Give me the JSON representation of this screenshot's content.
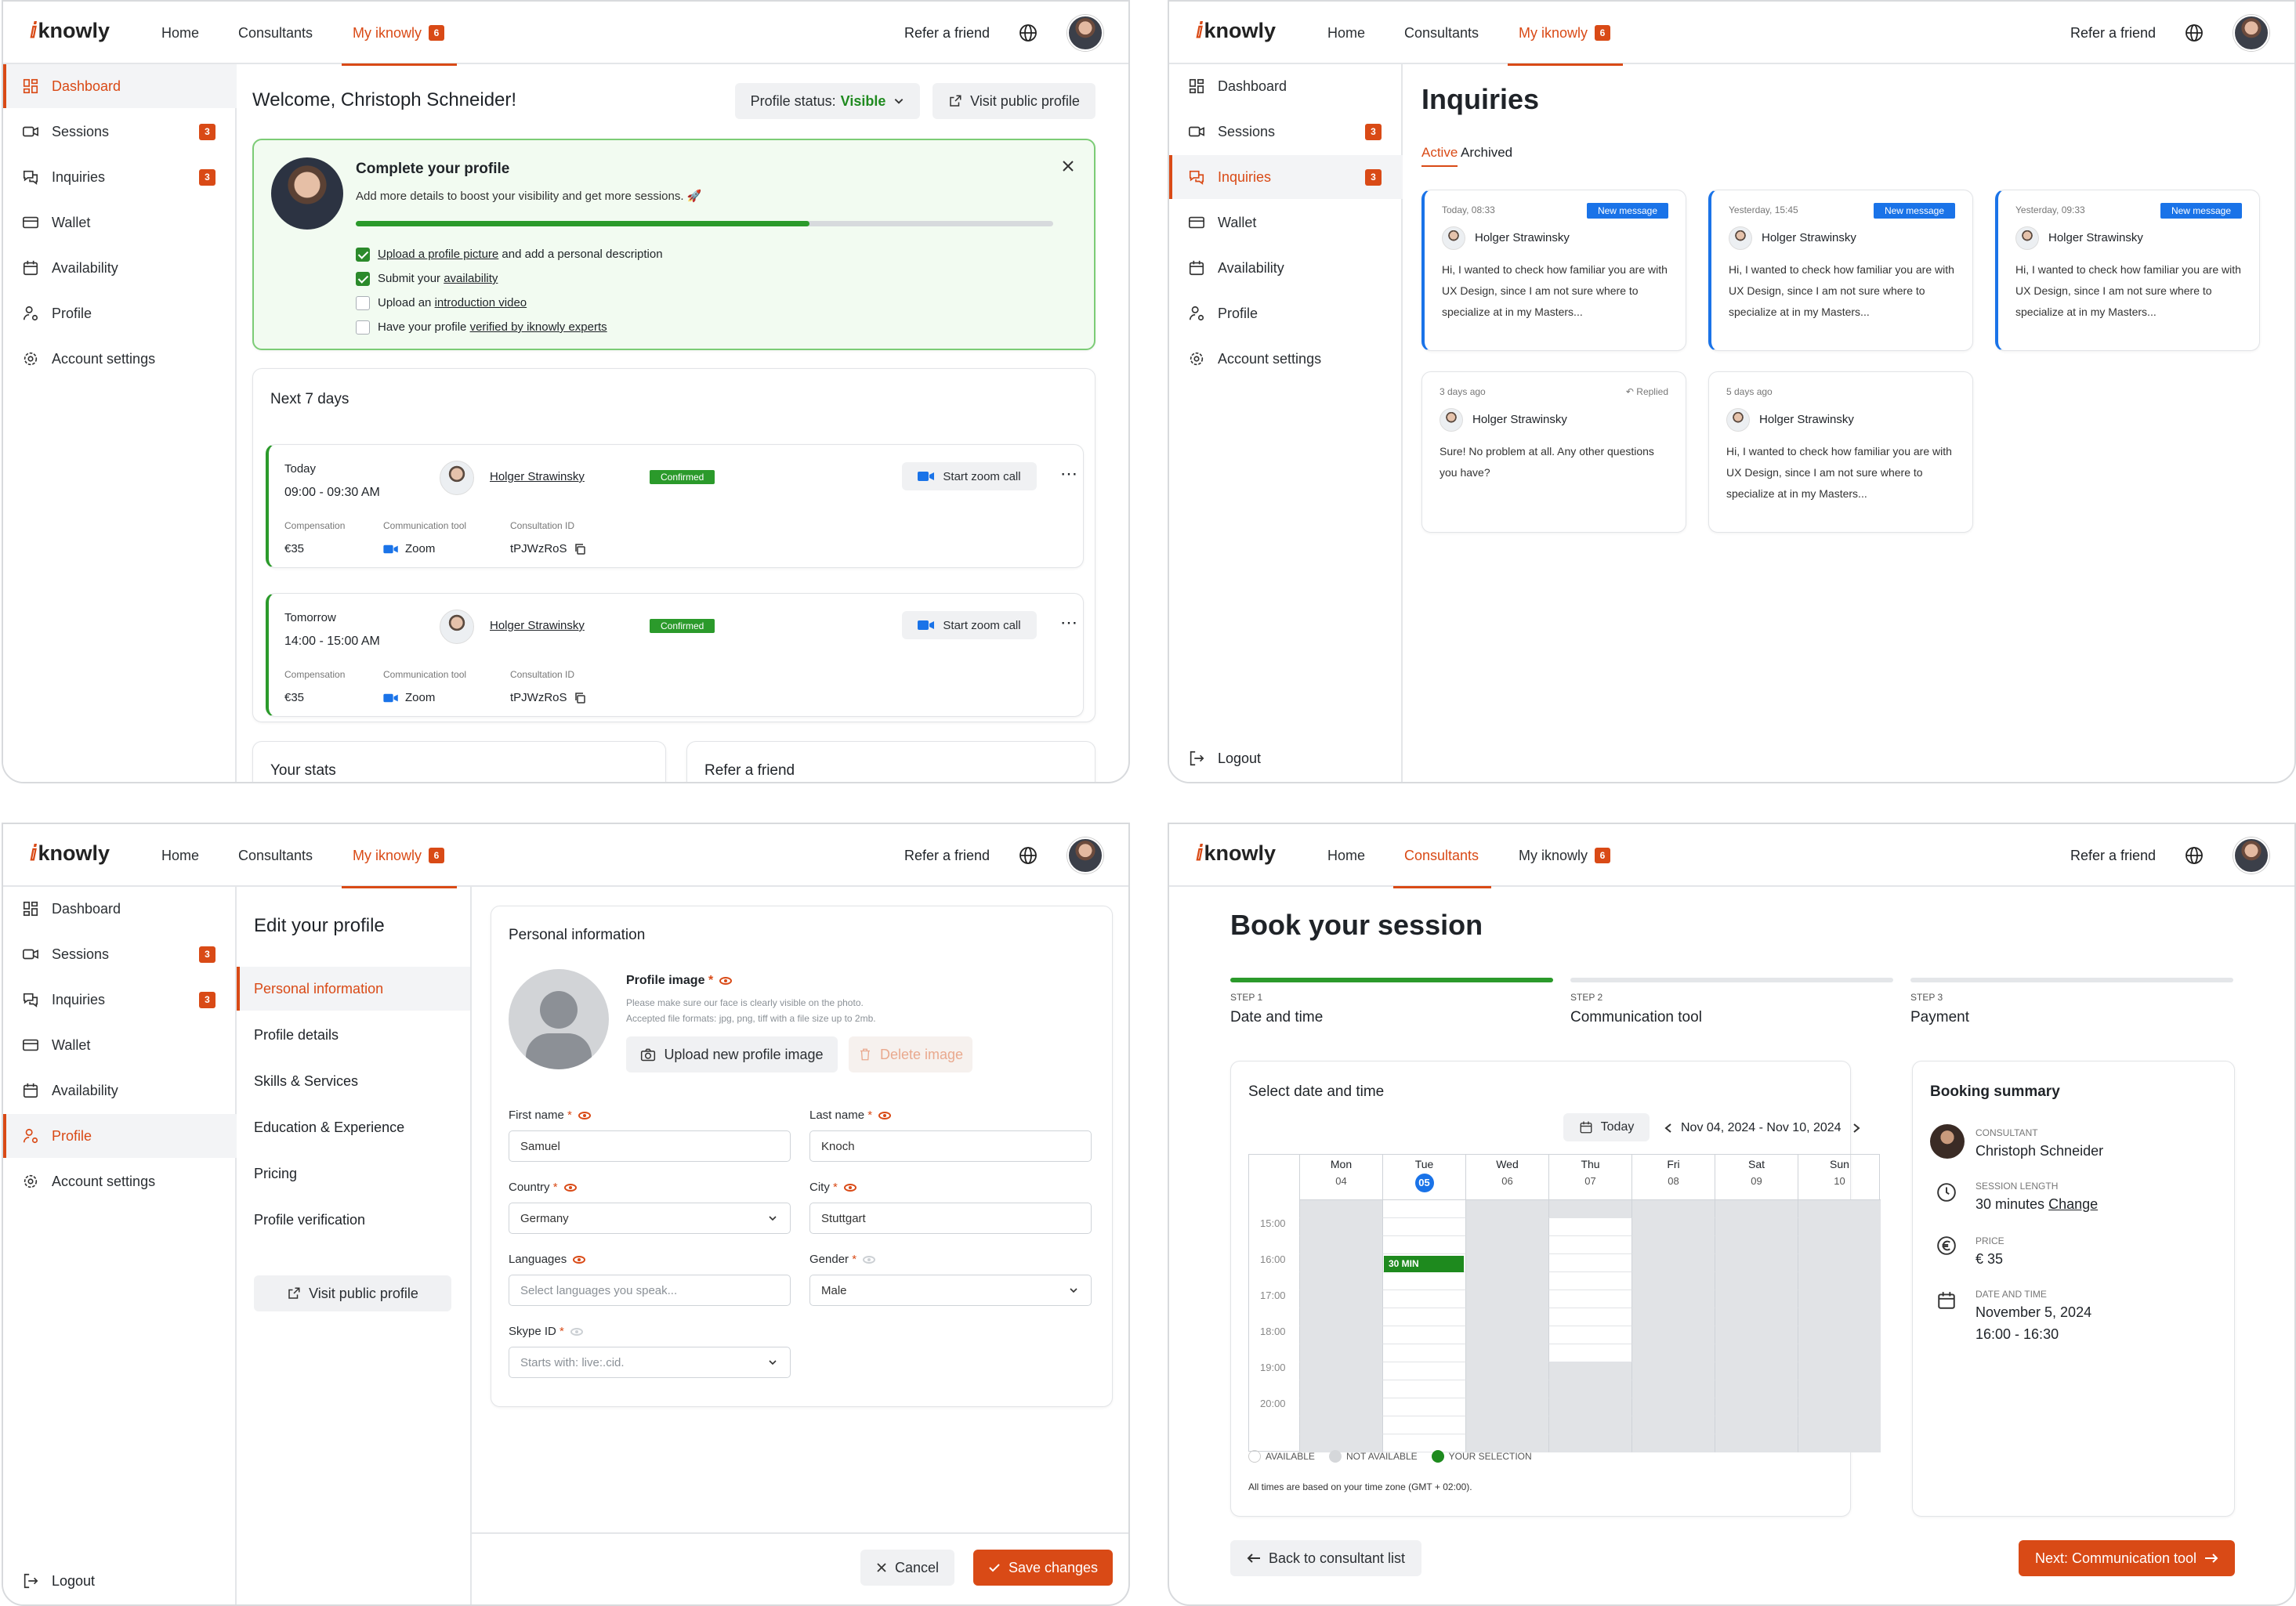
{
  "nav": {
    "logo": "knowly",
    "home": "Home",
    "consultants": "Consultants",
    "my_iknowly": "My iknowly",
    "my_badge": "6",
    "refer": "Refer a friend"
  },
  "sidebar": {
    "dashboard": "Dashboard",
    "sessions": "Sessions",
    "sessions_badge": "3",
    "inquiries": "Inquiries",
    "inquiries_badge": "3",
    "wallet": "Wallet",
    "availability": "Availability",
    "profile": "Profile",
    "account_settings": "Account settings",
    "logout": "Logout"
  },
  "dashboard": {
    "welcome": "Welcome, Christoph Schneider!",
    "profile_status_label": "Profile status:",
    "profile_status_value": "Visible",
    "visit_public": "Visit public profile",
    "complete": {
      "title": "Complete your profile",
      "subtitle": "Add more details to boost your visibility and get more sessions. 🚀",
      "progress": 0.65,
      "items": [
        {
          "pre": "",
          "link": "Upload a profile picture",
          "post": " and add a personal description",
          "done": true
        },
        {
          "pre": "Submit your ",
          "link": "availability",
          "post": "",
          "done": true
        },
        {
          "pre": "Upload an ",
          "link": "introduction video",
          "post": "",
          "done": false
        },
        {
          "pre": "Have your profile ",
          "link": "verified by iknowly experts",
          "post": "",
          "done": false
        }
      ]
    },
    "next7": "Next 7 days",
    "sessions": [
      {
        "day": "Today",
        "time": "09:00 - 09:30 AM",
        "name": "Holger Strawinsky",
        "status": "Confirmed",
        "zoom": "Start zoom call",
        "comp_label": "Compensation",
        "comp": "€35",
        "tool_label": "Communication tool",
        "tool": "Zoom",
        "id_label": "Consultation ID",
        "id": "tPJWzRoS"
      },
      {
        "day": "Tomorrow",
        "time": "14:00 - 15:00 AM",
        "name": "Holger Strawinsky",
        "status": "Confirmed",
        "zoom": "Start zoom call",
        "comp_label": "Compensation",
        "comp": "€35",
        "tool_label": "Communication tool",
        "tool": "Zoom",
        "id_label": "Consultation ID",
        "id": "tPJWzRoS"
      }
    ],
    "stats": "Your stats",
    "refer_card": "Refer a friend"
  },
  "inquiries": {
    "title": "Inquiries",
    "tab_active": "Active",
    "tab_archived": "Archived",
    "cards": [
      {
        "date": "Today, 08:33",
        "badge": "New message",
        "name": "Holger Strawinsky",
        "text": "Hi, I wanted to check how familiar you are with UX Design, since  I am not sure where to specialize at in my Masters..."
      },
      {
        "date": "Yesterday, 15:45",
        "badge": "New message",
        "name": "Holger Strawinsky",
        "text": "Hi, I wanted to check how familiar you are with UX Design, since  I am not sure where to specialize at in my Masters..."
      },
      {
        "date": "Yesterday, 09:33",
        "badge": "New message",
        "name": "Holger Strawinsky",
        "text": "Hi, I wanted to check how familiar you are with UX Design, since  I am not sure where to specialize at in my Masters..."
      },
      {
        "date": "3 days ago",
        "badge": "Replied",
        "name": "Holger Strawinsky",
        "text": "Sure! No problem at all. Any other questions you have?"
      },
      {
        "date": "5 days ago",
        "badge": "",
        "name": "Holger Strawinsky",
        "text": "Hi, I wanted to check how familiar you are with UX Design, since  I am not sure where to specialize at in my Masters..."
      }
    ]
  },
  "edit": {
    "title": "Edit your profile",
    "menu": [
      "Personal information",
      "Profile details",
      "Skills & Services",
      "Education & Experience",
      "Pricing",
      "Profile verification"
    ],
    "visit_public": "Visit public profile",
    "section": "Personal information",
    "image_label": "Profile image",
    "image_help1": "Please make sure our face is clearly visible on the photo.",
    "image_help2": "Accepted file formats: jpg, png, tiff with a file size up to 2mb.",
    "upload": "Upload new profile image",
    "delete": "Delete image",
    "first_label": "First name",
    "first_value": "Samuel",
    "last_label": "Last name",
    "last_value": "Knoch",
    "country_label": "Country",
    "country_value": "Germany",
    "city_label": "City",
    "city_value": "Stuttgart",
    "languages_label": "Languages",
    "languages_ph": "Select languages you speak...",
    "gender_label": "Gender",
    "gender_value": "Male",
    "skype_label": "Skype ID",
    "skype_ph": "Starts with: live:.cid.",
    "req": "*",
    "cancel": "Cancel",
    "save": "Save changes"
  },
  "booking": {
    "title": "Book your session",
    "steps": [
      {
        "num": "STEP 1",
        "name": "Date and time"
      },
      {
        "num": "STEP 2",
        "name": "Communication tool"
      },
      {
        "num": "STEP 3",
        "name": "Payment"
      }
    ],
    "select_title": "Select date and time",
    "today": "Today",
    "range": "Nov 04, 2024 - Nov 10, 2024",
    "days": [
      {
        "d": "Mon",
        "n": "04"
      },
      {
        "d": "Tue",
        "n": "05"
      },
      {
        "d": "Wed",
        "n": "06"
      },
      {
        "d": "Thu",
        "n": "07"
      },
      {
        "d": "Fri",
        "n": "08"
      },
      {
        "d": "Sat",
        "n": "09"
      },
      {
        "d": "Sun",
        "n": "10"
      }
    ],
    "hours": [
      "15:00",
      "16:00",
      "17:00",
      "18:00",
      "19:00",
      "20:00"
    ],
    "selection": "30 MIN",
    "legend_available": "AVAILABLE",
    "legend_not": "NOT AVAILABLE",
    "legend_sel": "YOUR SELECTION",
    "tz_note": "All times are based on your time zone (GMT + 02:00).",
    "summary_title": "Booking summary",
    "consultant_label": "CONSULTANT",
    "consultant": "Christoph Schneider",
    "length_label": "SESSION LENGTH",
    "length": "30 minutes",
    "change": "Change",
    "price_label": "PRICE",
    "price": "€ 35",
    "dt_label": "DATE AND TIME",
    "date": "November 5, 2024",
    "time": "16:00 - 16:30",
    "back": "Back to consultant list",
    "next": "Next: Communication tool"
  },
  "colors": {
    "accent": "#d94a16",
    "green": "#2b8a2b",
    "blue": "#1a73e8"
  }
}
